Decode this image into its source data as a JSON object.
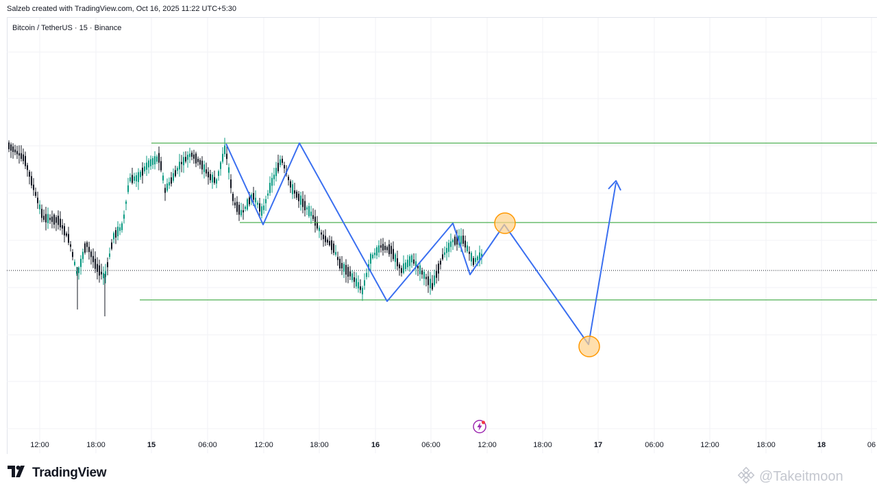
{
  "header": {
    "credit": "Salzeb created with TradingView.com, Oct 16, 2025 11:22 UTC+5:30"
  },
  "symbol": {
    "title": "Bitcoin / TetherUS · 15 · Binance"
  },
  "time_axis": {
    "labels": [
      {
        "text": "12:00",
        "bold": false
      },
      {
        "text": "18:00",
        "bold": false
      },
      {
        "text": "15",
        "bold": true
      },
      {
        "text": "06:00",
        "bold": false
      },
      {
        "text": "12:00",
        "bold": false
      },
      {
        "text": "18:00",
        "bold": false
      },
      {
        "text": "16",
        "bold": true
      },
      {
        "text": "06:00",
        "bold": false
      },
      {
        "text": "12:00",
        "bold": false
      },
      {
        "text": "18:00",
        "bold": false
      },
      {
        "text": "17",
        "bold": true
      },
      {
        "text": "06:00",
        "bold": false
      },
      {
        "text": "12:00",
        "bold": false
      },
      {
        "text": "18:00",
        "bold": false
      },
      {
        "text": "18",
        "bold": true
      },
      {
        "text": "06",
        "bold": false
      }
    ]
  },
  "drawings": {
    "horizontal_levels_color": "#4caf50",
    "projection_path_color": "#3a6ff0",
    "highlight_color": "#ff9800",
    "highlight_fill": "#ffd28a",
    "last_price_line_color": "#131722"
  },
  "chart_data": {
    "type": "candlestick",
    "symbol": "Bitcoin / TetherUS",
    "interval": "15",
    "exchange": "Binance",
    "candle_up_color": "#089981",
    "candle_down_color": "#131722",
    "grid": true
  },
  "branding": {
    "logo_text": "TradingView",
    "watermark_text": "@Takeitmoon"
  },
  "icons": {
    "logo": "tradingview-logo-icon",
    "event": "lightning-event-icon",
    "watermark": "exchange-logo-icon"
  }
}
